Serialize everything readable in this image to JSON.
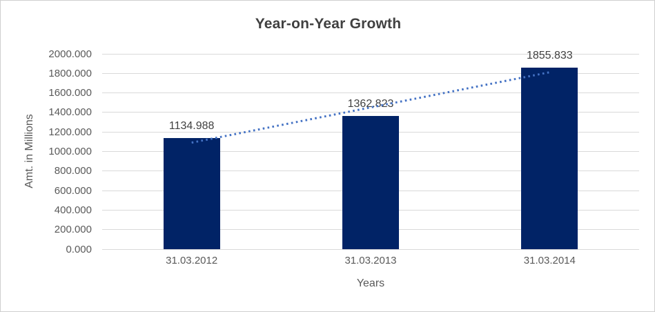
{
  "window": {
    "background_color": "#ffffff",
    "border_color": "#cfcfcf"
  },
  "chart_data": {
    "type": "bar",
    "title": "Year-on-Year Growth",
    "xlabel": "Years",
    "ylabel": "Amt. in Millions",
    "categories": [
      "31.03.2012",
      "31.03.2013",
      "31.03.2014"
    ],
    "values": [
      1134.988,
      1362.823,
      1855.833
    ],
    "data_labels": [
      "1134.988",
      "1362.823",
      "1855.833"
    ],
    "ylim": [
      0,
      2000
    ],
    "ytick_step": 200,
    "ytick_decimals": 3,
    "grid": true,
    "legend": false,
    "bar_color": "#012366",
    "gridline_color": "#d9d9d9",
    "tick_text_color": "#595959",
    "label_text_color": "#404040",
    "title_color": "#404040",
    "trendline": {
      "type": "linear",
      "line_style": "dotted",
      "color": "#4472c4"
    }
  }
}
